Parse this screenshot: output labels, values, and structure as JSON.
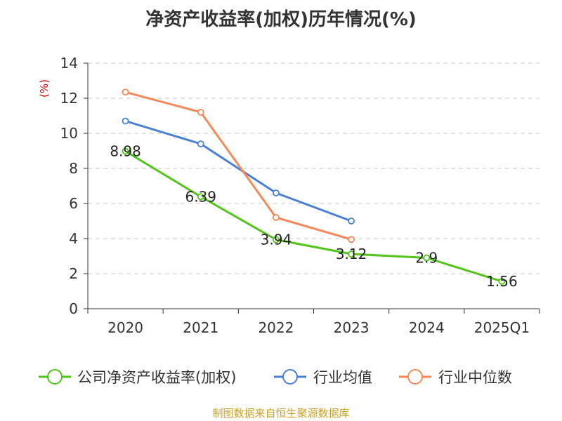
{
  "chart_data": {
    "type": "line",
    "title": "净资产收益率(加权)历年情况(%)",
    "ylabel": "(%)",
    "xlabel": "",
    "categories": [
      "2020",
      "2021",
      "2022",
      "2023",
      "2024",
      "2025Q1"
    ],
    "ylim": [
      0,
      14
    ],
    "yticks": [
      0,
      2,
      4,
      6,
      8,
      10,
      12,
      14
    ],
    "grid": true,
    "legend_position": "bottom",
    "series": [
      {
        "name": "公司净资产收益率(加权)",
        "color": "#52c41a",
        "values": [
          8.98,
          6.39,
          3.94,
          3.12,
          2.9,
          1.56
        ],
        "labels": [
          "8.98",
          "6.39",
          "3.94",
          "3.12",
          "2.9",
          "1.56"
        ]
      },
      {
        "name": "行业均值",
        "color": "#4a7fd6",
        "values": [
          10.7,
          9.4,
          6.6,
          5.0,
          null,
          null
        ]
      },
      {
        "name": "行业中位数",
        "color": "#f5895a",
        "values": [
          12.35,
          11.2,
          5.2,
          3.95,
          null,
          null
        ]
      }
    ],
    "source": "制图数据来自恒生聚源数据库"
  }
}
